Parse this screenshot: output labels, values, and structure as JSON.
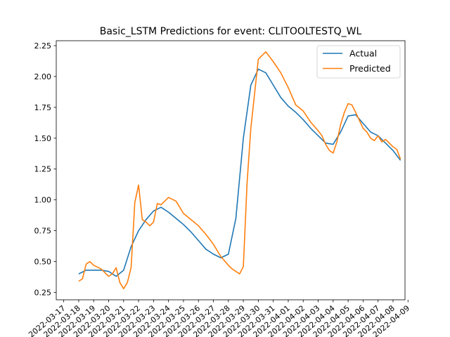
{
  "chart_data": {
    "type": "line",
    "title": "Basic_LSTM Predictions for event: CLITOOLTESTQ_WL",
    "xlabel": "",
    "ylabel": "",
    "x_ticks": [
      "2022-03-17",
      "2022-03-18",
      "2022-03-19",
      "2022-03-20",
      "2022-03-21",
      "2022-03-22",
      "2022-03-23",
      "2022-03-24",
      "2022-03-25",
      "2022-03-26",
      "2022-03-27",
      "2022-03-28",
      "2022-03-29",
      "2022-03-30",
      "2022-03-31",
      "2022-04-01",
      "2022-04-02",
      "2022-04-03",
      "2022-04-04",
      "2022-04-05",
      "2022-04-06",
      "2022-04-07",
      "2022-04-08",
      "2022-04-09"
    ],
    "y_ticks": [
      "0.25",
      "0.50",
      "0.75",
      "1.00",
      "1.25",
      "1.50",
      "1.75",
      "2.00",
      "2.25"
    ],
    "ylim": [
      0.19,
      2.29
    ],
    "grid": false,
    "legend_position": "top-right",
    "series": [
      {
        "name": "Actual",
        "color": "#1f77b4",
        "x": [
          "2022-03-18",
          "2022-03-18 12:00",
          "2022-03-19",
          "2022-03-19 12:00",
          "2022-03-20",
          "2022-03-20 12:00",
          "2022-03-21",
          "2022-03-21 12:00",
          "2022-03-22",
          "2022-03-22 12:00",
          "2022-03-23",
          "2022-03-23 12:00",
          "2022-03-24",
          "2022-03-24 12:00",
          "2022-03-25",
          "2022-03-25 12:00",
          "2022-03-26",
          "2022-03-26 12:00",
          "2022-03-27",
          "2022-03-27 12:00",
          "2022-03-28",
          "2022-03-28 12:00",
          "2022-03-29",
          "2022-03-29 12:00",
          "2022-03-30",
          "2022-03-30 12:00",
          "2022-03-31",
          "2022-03-31 12:00",
          "2022-04-01",
          "2022-04-01 12:00",
          "2022-04-02",
          "2022-04-02 12:00",
          "2022-04-03",
          "2022-04-03 12:00",
          "2022-04-04",
          "2022-04-04 12:00",
          "2022-04-05",
          "2022-04-05 12:00",
          "2022-04-06",
          "2022-04-06 12:00",
          "2022-04-07",
          "2022-04-07 12:00",
          "2022-04-08",
          "2022-04-08 12:00"
        ],
        "y": [
          0.4,
          0.43,
          0.43,
          0.43,
          0.42,
          0.38,
          0.43,
          0.62,
          0.75,
          0.84,
          0.91,
          0.94,
          0.9,
          0.85,
          0.8,
          0.74,
          0.67,
          0.6,
          0.56,
          0.53,
          0.56,
          0.85,
          1.5,
          1.93,
          2.06,
          2.03,
          1.93,
          1.83,
          1.76,
          1.71,
          1.65,
          1.58,
          1.52,
          1.46,
          1.45,
          1.55,
          1.68,
          1.69,
          1.62,
          1.55,
          1.52,
          1.46,
          1.4,
          1.32
        ]
      },
      {
        "name": "Predicted",
        "color": "#ff7f0e",
        "x": [
          "2022-03-18",
          "2022-03-18 06:00",
          "2022-03-18 12:00",
          "2022-03-18 18:00",
          "2022-03-19",
          "2022-03-19 12:00",
          "2022-03-20",
          "2022-03-20 06:00",
          "2022-03-20 12:00",
          "2022-03-20 18:00",
          "2022-03-21",
          "2022-03-21 06:00",
          "2022-03-21 12:00",
          "2022-03-21 18:00",
          "2022-03-22",
          "2022-03-22 06:00",
          "2022-03-22 12:00",
          "2022-03-22 18:00",
          "2022-03-23",
          "2022-03-23 06:00",
          "2022-03-23 12:00",
          "2022-03-23 18:00",
          "2022-03-24",
          "2022-03-24 12:00",
          "2022-03-25",
          "2022-03-25 12:00",
          "2022-03-26",
          "2022-03-26 12:00",
          "2022-03-27",
          "2022-03-27 12:00",
          "2022-03-28",
          "2022-03-28 06:00",
          "2022-03-28 12:00",
          "2022-03-28 18:00",
          "2022-03-29",
          "2022-03-29 06:00",
          "2022-03-29 12:00",
          "2022-03-29 18:00",
          "2022-03-30",
          "2022-03-30 06:00",
          "2022-03-30 12:00",
          "2022-03-31",
          "2022-03-31 12:00",
          "2022-04-01",
          "2022-04-01 12:00",
          "2022-04-02",
          "2022-04-02 12:00",
          "2022-04-03",
          "2022-04-03 06:00",
          "2022-04-03 12:00",
          "2022-04-03 18:00",
          "2022-04-04",
          "2022-04-04 06:00",
          "2022-04-04 12:00",
          "2022-04-04 18:00",
          "2022-04-05",
          "2022-04-05 06:00",
          "2022-04-05 12:00",
          "2022-04-06",
          "2022-04-06 06:00",
          "2022-04-06 12:00",
          "2022-04-06 18:00",
          "2022-04-07",
          "2022-04-07 06:00",
          "2022-04-07 12:00",
          "2022-04-07 18:00",
          "2022-04-08",
          "2022-04-08 06:00",
          "2022-04-08 12:00"
        ],
        "y": [
          0.34,
          0.36,
          0.48,
          0.5,
          0.47,
          0.44,
          0.38,
          0.4,
          0.45,
          0.33,
          0.28,
          0.33,
          0.45,
          0.98,
          1.12,
          0.84,
          0.82,
          0.79,
          0.82,
          0.97,
          0.96,
          0.99,
          1.02,
          0.99,
          0.89,
          0.84,
          0.79,
          0.72,
          0.64,
          0.54,
          0.47,
          0.44,
          0.42,
          0.4,
          0.46,
          1.14,
          1.58,
          1.86,
          2.14,
          2.17,
          2.2,
          2.12,
          2.03,
          1.91,
          1.77,
          1.72,
          1.63,
          1.56,
          1.52,
          1.45,
          1.4,
          1.38,
          1.47,
          1.61,
          1.71,
          1.78,
          1.77,
          1.71,
          1.58,
          1.55,
          1.5,
          1.48,
          1.52,
          1.47,
          1.49,
          1.46,
          1.43,
          1.41,
          1.33
        ]
      }
    ]
  }
}
